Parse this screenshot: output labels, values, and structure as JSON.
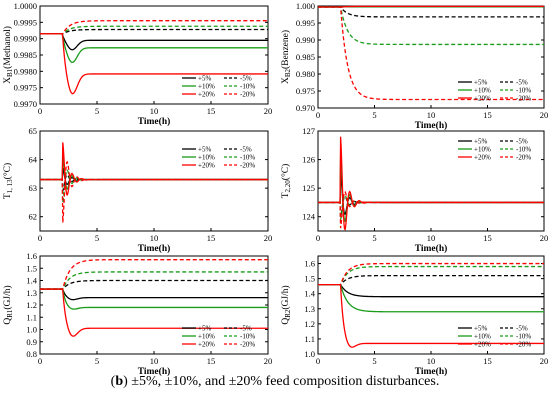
{
  "caption": {
    "label": "b",
    "text": " ±5%, ±10%, and ±20% feed composition disturbances."
  },
  "colors": {
    "black": "#000000",
    "green": "#1a9c1a",
    "red": "#ff0000"
  },
  "chart_data": [
    {
      "type": "line",
      "ylabel_main": "X",
      "ylabel_sub": "B1",
      "ylabel_rest": "(Methanol)",
      "xlabel": "Time(h)",
      "xlim": [
        0,
        20
      ],
      "ylim": [
        0.997,
        1.0
      ],
      "yticks": [
        "0.9970",
        "0.9975",
        "0.9980",
        "0.9985",
        "0.9990",
        "0.9995",
        "1.0000"
      ],
      "xticks": [
        "0",
        "5",
        "10",
        "15",
        "20"
      ],
      "legend": [
        "+5%",
        "-5%",
        "+10%",
        "-10%",
        "+20%",
        "-20%"
      ],
      "legend_position": "lower-right",
      "base": 0.99915,
      "series": [
        {
          "name": "+5%",
          "color": "black",
          "dash": false,
          "final": 0.99895,
          "peak": 0.99865
        },
        {
          "name": "-5%",
          "color": "black",
          "dash": true,
          "final": 0.99928,
          "peak": 0.99928
        },
        {
          "name": "+10%",
          "color": "green",
          "dash": false,
          "final": 0.99872,
          "peak": 0.99825
        },
        {
          "name": "-10%",
          "color": "green",
          "dash": true,
          "final": 0.99938,
          "peak": 0.99938
        },
        {
          "name": "+20%",
          "color": "red",
          "dash": false,
          "final": 0.99792,
          "peak": 0.99725
        },
        {
          "name": "-20%",
          "color": "red",
          "dash": true,
          "final": 0.99955,
          "peak": 0.99955
        }
      ]
    },
    {
      "type": "line",
      "ylabel_main": "X",
      "ylabel_sub": "B2",
      "ylabel_rest": "(Benzene)",
      "xlabel": "Time(h)",
      "xlim": [
        0,
        20
      ],
      "ylim": [
        0.97,
        1.0
      ],
      "yticks": [
        "0.970",
        "0.975",
        "0.980",
        "0.985",
        "0.990",
        "0.995",
        "1.000"
      ],
      "xticks": [
        "0",
        "5",
        "10",
        "15",
        "20"
      ],
      "legend": [
        "+5%",
        "-5%",
        "+10%",
        "-10%",
        "+20%",
        "-20%"
      ],
      "legend_position": "lower-right",
      "base": 0.9997,
      "series": [
        {
          "name": "+5%",
          "color": "black",
          "dash": false,
          "final": 0.9998,
          "peak": 0.9998
        },
        {
          "name": "-5%",
          "color": "black",
          "dash": true,
          "final": 0.9968,
          "peak": 0.9968
        },
        {
          "name": "+10%",
          "color": "green",
          "dash": false,
          "final": 0.9998,
          "peak": 0.9998
        },
        {
          "name": "-10%",
          "color": "green",
          "dash": true,
          "final": 0.9887,
          "peak": 0.9887
        },
        {
          "name": "+20%",
          "color": "red",
          "dash": false,
          "final": 0.9999,
          "peak": 0.9999
        },
        {
          "name": "-20%",
          "color": "red",
          "dash": true,
          "final": 0.9725,
          "peak": 0.9725
        }
      ]
    },
    {
      "type": "line",
      "ylabel_main": "T",
      "ylabel_sub": "1, 13",
      "ylabel_rest": "(°C)",
      "xlabel": "Time(h)",
      "xlim": [
        0,
        20
      ],
      "ylim": [
        61.5,
        65
      ],
      "yticks": [
        "62",
        "63",
        "64",
        "65"
      ],
      "ytick_values": [
        62,
        63,
        64,
        65
      ],
      "xticks": [
        "0",
        "5",
        "10",
        "15",
        "20"
      ],
      "legend": [
        "+5%",
        "-5%",
        "+10%",
        "-10%",
        "+20%",
        "-20%"
      ],
      "legend_position": "center-right",
      "base": 63.3,
      "series": [
        {
          "name": "+5%",
          "color": "black",
          "dash": false,
          "final": 63.3,
          "peak": 63.7
        },
        {
          "name": "-5%",
          "color": "black",
          "dash": true,
          "final": 63.3,
          "peak": 62.9
        },
        {
          "name": "+10%",
          "color": "green",
          "dash": false,
          "final": 63.3,
          "peak": 64.1
        },
        {
          "name": "-10%",
          "color": "green",
          "dash": true,
          "final": 63.3,
          "peak": 62.5
        },
        {
          "name": "+20%",
          "color": "red",
          "dash": false,
          "final": 63.3,
          "peak": 64.6
        },
        {
          "name": "-20%",
          "color": "red",
          "dash": true,
          "final": 63.3,
          "peak": 61.8
        }
      ]
    },
    {
      "type": "line",
      "ylabel_main": "T",
      "ylabel_sub": "2,20",
      "ylabel_rest": "(°C)",
      "xlabel": "Time(h)",
      "xlim": [
        0,
        20
      ],
      "ylim": [
        123.5,
        127
      ],
      "yticks": [
        "124",
        "125",
        "126",
        "127"
      ],
      "ytick_values": [
        124,
        125,
        126,
        127
      ],
      "xticks": [
        "0",
        "5",
        "10",
        "15",
        "20"
      ],
      "legend": [
        "+5%",
        "-5%",
        "+10%",
        "-10%",
        "+20%",
        "-20%"
      ],
      "legend_position": "top-right",
      "base": 124.5,
      "series": [
        {
          "name": "+5%",
          "color": "black",
          "dash": false,
          "final": 124.5,
          "peak": 125.5
        },
        {
          "name": "-5%",
          "color": "black",
          "dash": true,
          "final": 124.5,
          "peak": 124.0
        },
        {
          "name": "+10%",
          "color": "green",
          "dash": false,
          "final": 124.5,
          "peak": 126.1
        },
        {
          "name": "-10%",
          "color": "green",
          "dash": true,
          "final": 124.5,
          "peak": 123.9
        },
        {
          "name": "+20%",
          "color": "red",
          "dash": false,
          "final": 124.5,
          "peak": 126.8
        },
        {
          "name": "-20%",
          "color": "red",
          "dash": true,
          "final": 124.5,
          "peak": 123.6
        }
      ]
    },
    {
      "type": "line",
      "ylabel_main": "Q",
      "ylabel_sub": "R1",
      "ylabel_rest": "(GJ/h)",
      "xlabel": "Time(h)",
      "xlim": [
        0,
        20
      ],
      "ylim": [
        0.8,
        1.6
      ],
      "yticks": [
        "0.8",
        "0.9",
        "1.0",
        "1.1",
        "1.2",
        "1.3",
        "1.4",
        "1.5",
        "1.6"
      ],
      "xticks": [
        "0",
        "5",
        "10",
        "15",
        "20"
      ],
      "legend": [
        "+5%",
        "-5%",
        "+10%",
        "-10%",
        "+20%",
        "-20%"
      ],
      "legend_position": "lower-right",
      "base": 1.33,
      "series": [
        {
          "name": "+5%",
          "color": "black",
          "dash": false,
          "final": 1.26,
          "peak": 1.24
        },
        {
          "name": "-5%",
          "color": "black",
          "dash": true,
          "final": 1.4,
          "peak": 1.4
        },
        {
          "name": "+10%",
          "color": "green",
          "dash": false,
          "final": 1.18,
          "peak": 1.16
        },
        {
          "name": "-10%",
          "color": "green",
          "dash": true,
          "final": 1.47,
          "peak": 1.47
        },
        {
          "name": "+20%",
          "color": "red",
          "dash": false,
          "final": 1.01,
          "peak": 0.93
        },
        {
          "name": "-20%",
          "color": "red",
          "dash": true,
          "final": 1.57,
          "peak": 1.57
        }
      ]
    },
    {
      "type": "line",
      "ylabel_main": "Q",
      "ylabel_sub": "R2",
      "ylabel_rest": "(GJ/h)",
      "xlabel": "Time(h)",
      "xlim": [
        0,
        20
      ],
      "ylim": [
        1.0,
        1.65
      ],
      "yticks": [
        "1.0",
        "1.1",
        "1.2",
        "1.3",
        "1.4",
        "1.5",
        "1.6"
      ],
      "ytick_values": [
        1.0,
        1.1,
        1.2,
        1.3,
        1.4,
        1.5,
        1.6
      ],
      "xticks": [
        "0",
        "5",
        "10",
        "15",
        "20"
      ],
      "legend": [
        "+5%",
        "-5%",
        "+10%",
        "-10%",
        "+20%",
        "-20%"
      ],
      "legend_position": "lower-right",
      "base": 1.46,
      "series": [
        {
          "name": "+5%",
          "color": "black",
          "dash": false,
          "final": 1.38,
          "peak": 1.38
        },
        {
          "name": "-5%",
          "color": "black",
          "dash": true,
          "final": 1.52,
          "peak": 1.52
        },
        {
          "name": "+10%",
          "color": "green",
          "dash": false,
          "final": 1.28,
          "peak": 1.28
        },
        {
          "name": "-10%",
          "color": "green",
          "dash": true,
          "final": 1.58,
          "peak": 1.58
        },
        {
          "name": "+20%",
          "color": "red",
          "dash": false,
          "final": 1.07,
          "peak": 1.03
        },
        {
          "name": "-20%",
          "color": "red",
          "dash": true,
          "final": 1.6,
          "peak": 1.6
        }
      ]
    }
  ]
}
